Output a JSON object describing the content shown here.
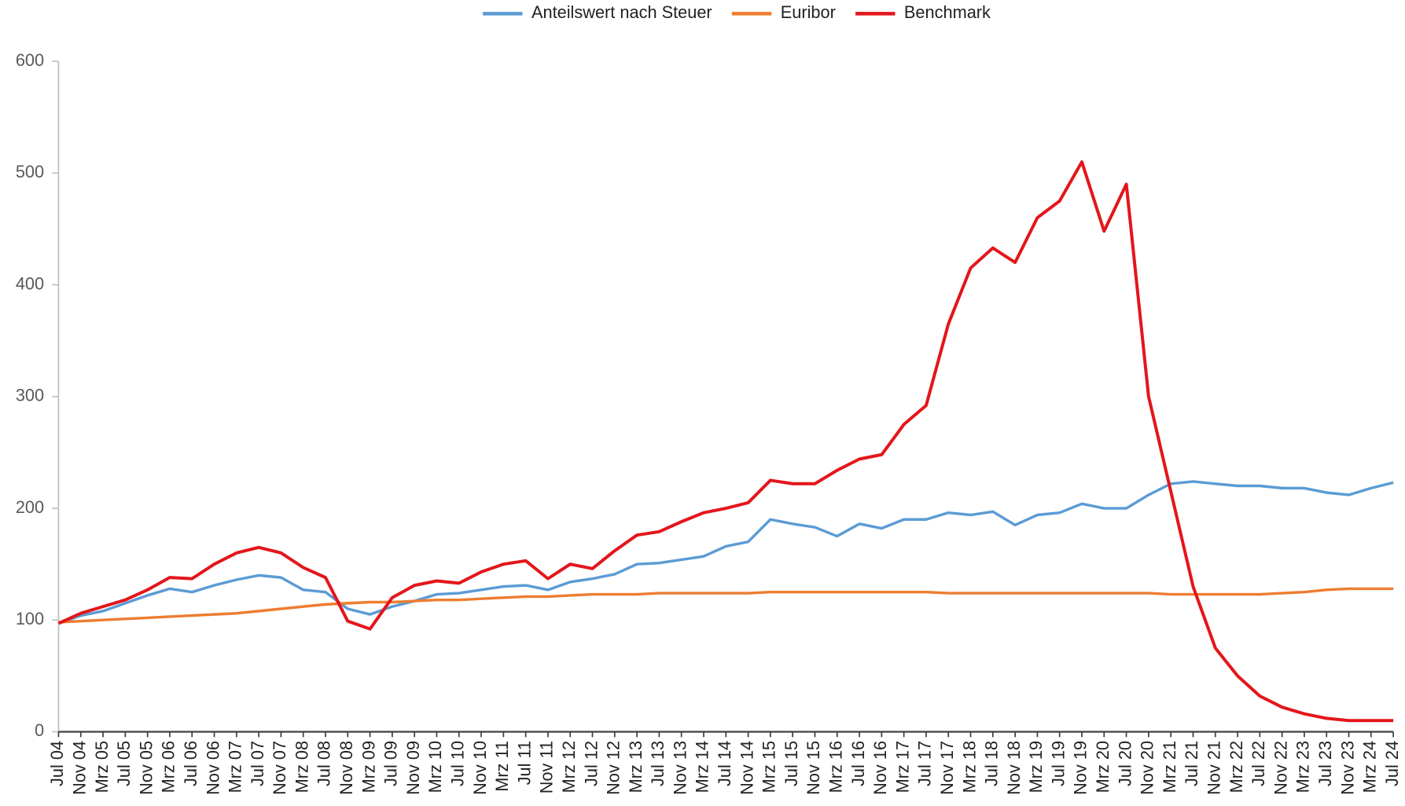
{
  "chart_data": {
    "type": "line",
    "categories": [
      "Jul 04",
      "Nov 04",
      "Mrz 05",
      "Jul 05",
      "Nov 05",
      "Mrz 06",
      "Jul 06",
      "Nov 06",
      "Mrz 07",
      "Jul 07",
      "Nov 07",
      "Mrz 08",
      "Jul 08",
      "Nov 08",
      "Mrz 09",
      "Jul 09",
      "Nov 09",
      "Mrz 10",
      "Jul 10",
      "Nov 10",
      "Mrz 11",
      "Jul 11",
      "Nov 11",
      "Mrz 12",
      "Jul 12",
      "Nov 12",
      "Mrz 13",
      "Jul 13",
      "Nov 13",
      "Mrz 14",
      "Jul 14",
      "Nov 14",
      "Mrz 15",
      "Jul 15",
      "Nov 15",
      "Mrz 16",
      "Jul 16",
      "Nov 16",
      "Mrz 17",
      "Jul 17",
      "Nov 17",
      "Mrz 18",
      "Jul 18",
      "Nov 18",
      "Mrz 19",
      "Jul 19",
      "Nov 19",
      "Mrz 20",
      "Jul 20",
      "Nov 20",
      "Mrz 21",
      "Jul 21",
      "Nov 21",
      "Mrz 22",
      "Jul 22",
      "Nov 22",
      "Mrz 23",
      "Jul 23",
      "Nov 23",
      "Mrz 24",
      "Jul 24"
    ],
    "series": [
      {
        "name": "Anteilswert nach Steuer",
        "color": "#5b9bd5",
        "values": [
          97,
          104,
          108,
          115,
          122,
          128,
          125,
          131,
          136,
          140,
          138,
          127,
          125,
          110,
          105,
          112,
          117,
          123,
          124,
          127,
          130,
          131,
          127,
          134,
          137,
          141,
          150,
          151,
          154,
          157,
          166,
          170,
          190,
          186,
          183,
          175,
          186,
          182,
          190,
          190,
          196,
          194,
          197,
          185,
          194,
          196,
          204,
          200,
          200,
          212,
          222,
          224,
          222,
          220,
          220,
          218,
          218,
          214,
          212,
          218,
          223
        ]
      },
      {
        "name": "Euribor",
        "color": "#ed7d31",
        "values": [
          98,
          99,
          100,
          101,
          102,
          103,
          104,
          105,
          106,
          108,
          110,
          112,
          114,
          115,
          116,
          116,
          117,
          118,
          118,
          119,
          120,
          121,
          121,
          122,
          123,
          123,
          123,
          124,
          124,
          124,
          124,
          124,
          125,
          125,
          125,
          125,
          125,
          125,
          125,
          125,
          124,
          124,
          124,
          124,
          124,
          124,
          124,
          124,
          124,
          124,
          123,
          123,
          123,
          123,
          123,
          124,
          125,
          127,
          128,
          128,
          128
        ]
      },
      {
        "name": "Benchmark",
        "color": "#e3161b",
        "values": [
          97,
          106,
          112,
          118,
          127,
          138,
          137,
          150,
          160,
          165,
          160,
          147,
          138,
          99,
          92,
          120,
          131,
          135,
          133,
          143,
          150,
          153,
          137,
          150,
          146,
          162,
          176,
          179,
          188,
          196,
          200,
          205,
          225,
          222,
          222,
          234,
          244,
          248,
          275,
          292,
          365,
          415,
          433,
          420,
          460,
          475,
          510,
          448,
          490,
          300,
          215,
          130,
          75,
          50,
          32,
          22,
          16,
          12,
          10,
          10,
          10
        ]
      }
    ],
    "ylim": [
      0,
      600
    ],
    "yticks": [
      0,
      100,
      200,
      300,
      400,
      500,
      600
    ],
    "grid": false,
    "legend": "top"
  }
}
